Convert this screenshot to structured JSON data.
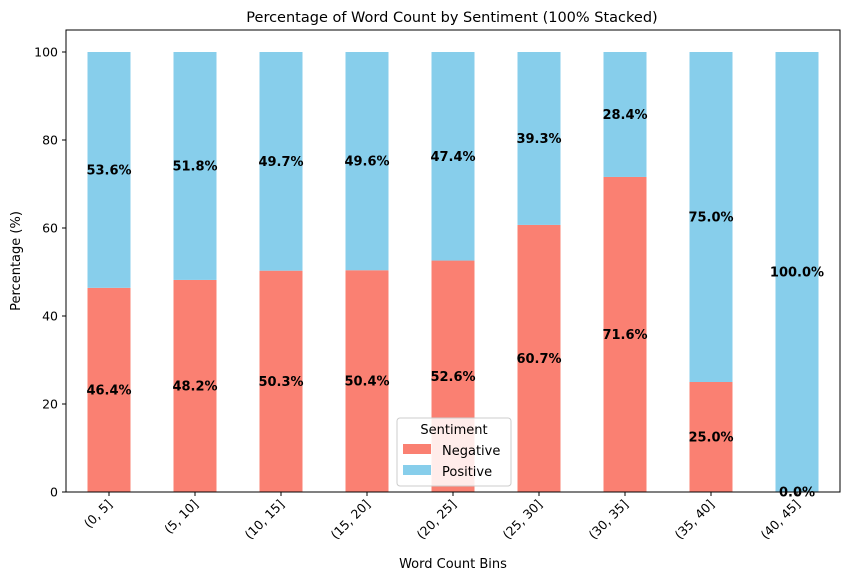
{
  "chart_data": {
    "type": "bar",
    "stacked": "100%",
    "title": "Percentage of Word Count by Sentiment (100% Stacked)",
    "xlabel": "Word Count Bins",
    "ylabel": "Percentage (%)",
    "ylim": [
      0,
      105
    ],
    "yticks": [
      0,
      20,
      40,
      60,
      80,
      100
    ],
    "grid": false,
    "categories": [
      "(0, 5]",
      "(5, 10]",
      "(10, 15]",
      "(15, 20]",
      "(20, 25]",
      "(25, 30]",
      "(30, 35]",
      "(35, 40]",
      "(40, 45]"
    ],
    "series": [
      {
        "name": "Negative",
        "color": "#fa8072",
        "values": [
          46.4,
          48.2,
          50.3,
          50.4,
          52.6,
          60.7,
          71.6,
          25.0,
          0.0
        ],
        "labels": [
          "46.4%",
          "48.2%",
          "50.3%",
          "50.4%",
          "52.6%",
          "60.7%",
          "71.6%",
          "25.0%",
          "0.0%"
        ]
      },
      {
        "name": "Positive",
        "color": "#87ceeb",
        "values": [
          53.6,
          51.8,
          49.7,
          49.6,
          47.4,
          39.3,
          28.4,
          75.0,
          100.0
        ],
        "labels": [
          "53.6%",
          "51.8%",
          "49.7%",
          "49.6%",
          "47.4%",
          "39.3%",
          "28.4%",
          "75.0%",
          "100.0%"
        ]
      }
    ],
    "legend": {
      "title": "Sentiment",
      "placement": "lower center"
    }
  }
}
